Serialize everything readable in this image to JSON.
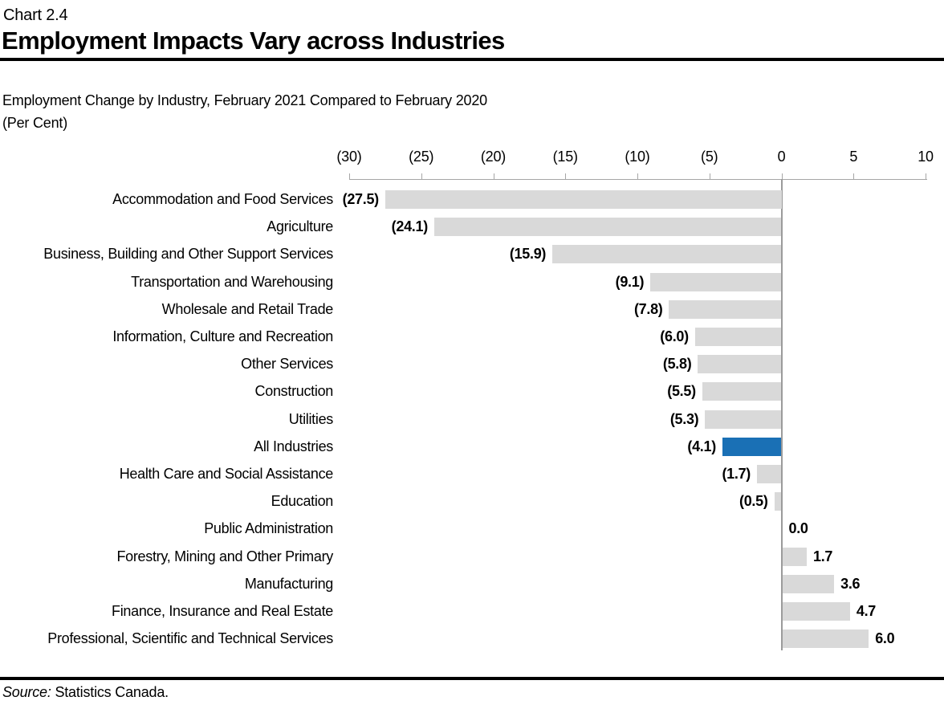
{
  "header": {
    "chart_number": "Chart 2.4",
    "title": "Employment Impacts Vary across Industries"
  },
  "subtitle": {
    "line1": "Employment Change by Industry, February 2021 Compared to February 2020",
    "line2": "(Per Cent)"
  },
  "footer": {
    "source_label": "Source:",
    "source_text": "Statistics Canada."
  },
  "colors": {
    "bar_default": "#d9d9d9",
    "bar_highlight": "#1a70b5",
    "axis": "#a6a6a6",
    "zero_line": "#9b9b9b",
    "rule": "#000000"
  },
  "chart_data": {
    "type": "bar",
    "orientation": "horizontal",
    "title": "Employment Impacts Vary across Industries",
    "subtitle": "Employment Change by Industry, February 2021 Compared to February 2020",
    "units": "Per Cent",
    "xlim": [
      -30,
      10
    ],
    "grid": false,
    "legend": false,
    "x_ticks": [
      {
        "value": -30,
        "label": "(30)"
      },
      {
        "value": -25,
        "label": "(25)"
      },
      {
        "value": -20,
        "label": "(20)"
      },
      {
        "value": -15,
        "label": "(15)"
      },
      {
        "value": -10,
        "label": "(10)"
      },
      {
        "value": -5,
        "label": "(5)"
      },
      {
        "value": 0,
        "label": "0"
      },
      {
        "value": 5,
        "label": "5"
      },
      {
        "value": 10,
        "label": "10"
      }
    ],
    "highlight_category": "All Industries",
    "points": [
      {
        "category": "Accommodation and Food Services",
        "value": -27.5,
        "display": "(27.5)",
        "highlighted": false
      },
      {
        "category": "Agriculture",
        "value": -24.1,
        "display": "(24.1)",
        "highlighted": false
      },
      {
        "category": "Business, Building and Other Support Services",
        "value": -15.9,
        "display": "(15.9)",
        "highlighted": false
      },
      {
        "category": "Transportation and Warehousing",
        "value": -9.1,
        "display": "(9.1)",
        "highlighted": false
      },
      {
        "category": "Wholesale and Retail Trade",
        "value": -7.8,
        "display": "(7.8)",
        "highlighted": false
      },
      {
        "category": "Information, Culture and Recreation",
        "value": -6.0,
        "display": "(6.0)",
        "highlighted": false
      },
      {
        "category": "Other Services",
        "value": -5.8,
        "display": "(5.8)",
        "highlighted": false
      },
      {
        "category": "Construction",
        "value": -5.5,
        "display": "(5.5)",
        "highlighted": false
      },
      {
        "category": "Utilities",
        "value": -5.3,
        "display": "(5.3)",
        "highlighted": false
      },
      {
        "category": "All Industries",
        "value": -4.1,
        "display": "(4.1)",
        "highlighted": true
      },
      {
        "category": "Health Care and Social Assistance",
        "value": -1.7,
        "display": "(1.7)",
        "highlighted": false
      },
      {
        "category": "Education",
        "value": -0.5,
        "display": "(0.5)",
        "highlighted": false
      },
      {
        "category": "Public Administration",
        "value": 0.0,
        "display": "0.0",
        "highlighted": false
      },
      {
        "category": "Forestry, Mining and Other Primary",
        "value": 1.7,
        "display": "1.7",
        "highlighted": false
      },
      {
        "category": "Manufacturing",
        "value": 3.6,
        "display": "3.6",
        "highlighted": false
      },
      {
        "category": "Finance, Insurance and Real Estate",
        "value": 4.7,
        "display": "4.7",
        "highlighted": false
      },
      {
        "category": "Professional, Scientific and Technical Services",
        "value": 6.0,
        "display": "6.0",
        "highlighted": false
      }
    ]
  }
}
